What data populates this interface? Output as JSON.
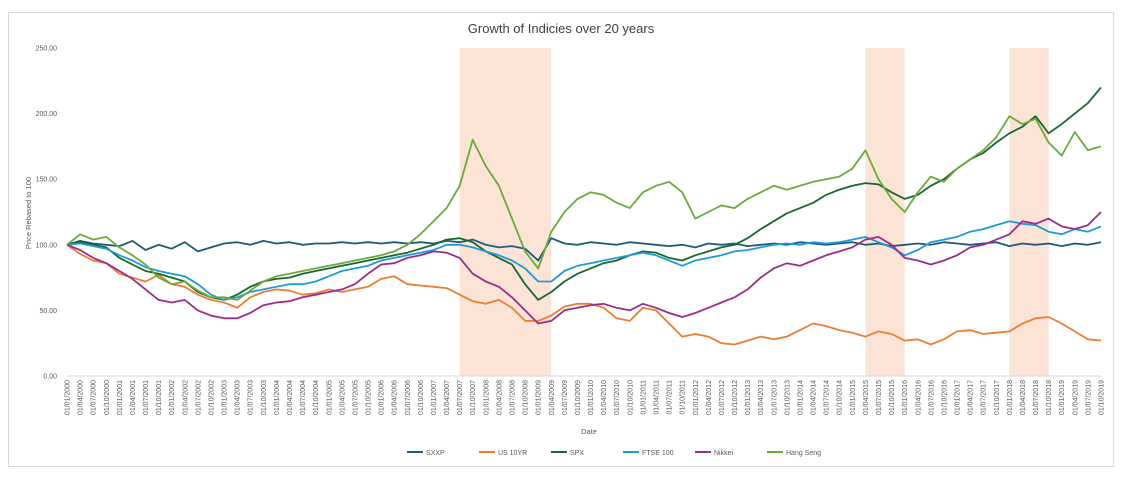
{
  "chart_data": {
    "type": "line",
    "title": "Growth of Indicies over 20 years",
    "xlabel": "Date",
    "ylabel": "Price Rebased to 100",
    "ylim": [
      0,
      250
    ],
    "y_ticks": [
      "0.00",
      "50.00",
      "100.00",
      "150.00",
      "200.00",
      "250.00"
    ],
    "grid": false,
    "legend_position": "bottom",
    "x": [
      "01/01/2000",
      "01/04/2000",
      "01/07/2000",
      "01/10/2000",
      "01/01/2001",
      "01/04/2001",
      "01/07/2001",
      "01/10/2001",
      "01/01/2002",
      "01/04/2002",
      "01/07/2002",
      "01/10/2002",
      "01/01/2003",
      "01/04/2003",
      "01/07/2003",
      "01/10/2003",
      "01/01/2004",
      "01/04/2004",
      "01/07/2004",
      "01/10/2004",
      "01/01/2005",
      "01/04/2005",
      "01/07/2005",
      "01/10/2005",
      "01/01/2006",
      "01/04/2006",
      "01/07/2006",
      "01/10/2006",
      "01/01/2007",
      "01/04/2007",
      "01/07/2007",
      "01/10/2007",
      "01/01/2008",
      "01/04/2008",
      "01/07/2008",
      "01/10/2008",
      "01/01/2009",
      "01/04/2009",
      "01/07/2009",
      "01/10/2009",
      "01/01/2010",
      "01/04/2010",
      "01/07/2010",
      "01/10/2010",
      "01/01/2011",
      "01/04/2011",
      "01/07/2011",
      "01/10/2011",
      "01/01/2012",
      "01/04/2012",
      "01/07/2012",
      "01/10/2012",
      "01/01/2013",
      "01/04/2013",
      "01/07/2013",
      "01/10/2013",
      "01/01/2014",
      "01/04/2014",
      "01/07/2014",
      "01/10/2014",
      "01/01/2015",
      "01/04/2015",
      "01/07/2015",
      "01/10/2015",
      "01/01/2016",
      "01/04/2016",
      "01/07/2016",
      "01/10/2016",
      "01/01/2017",
      "01/04/2017",
      "01/07/2017",
      "01/10/2017",
      "01/01/2018",
      "01/04/2018",
      "01/07/2018",
      "01/10/2018",
      "01/01/2019",
      "01/04/2019",
      "01/07/2019",
      "01/10/2019"
    ],
    "shaded_ranges": [
      [
        "01/07/2007",
        "01/04/2009"
      ],
      [
        "01/04/2015",
        "01/01/2016"
      ],
      [
        "01/01/2018",
        "01/10/2018"
      ]
    ],
    "series": [
      {
        "name": "SXXP",
        "color": "#1f5a7a",
        "values": [
          100,
          103,
          101,
          100,
          99,
          103,
          96,
          100,
          97,
          102,
          95,
          98,
          101,
          102,
          100,
          103,
          101,
          102,
          100,
          101,
          101,
          102,
          101,
          102,
          101,
          102,
          101,
          102,
          101,
          103,
          102,
          104,
          100,
          98,
          99,
          97,
          88,
          105,
          101,
          100,
          102,
          101,
          100,
          102,
          101,
          100,
          99,
          100,
          98,
          101,
          100,
          101,
          99,
          100,
          101,
          100,
          102,
          101,
          100,
          101,
          102,
          100,
          101,
          99,
          100,
          101,
          100,
          102,
          101,
          100,
          101,
          102,
          99,
          101,
          100,
          101,
          99,
          101,
          100,
          102
        ]
      },
      {
        "name": "US 10YR",
        "color": "#ed7d31",
        "values": [
          100,
          93,
          88,
          86,
          78,
          75,
          72,
          77,
          70,
          68,
          62,
          58,
          56,
          52,
          60,
          64,
          66,
          65,
          62,
          63,
          66,
          64,
          66,
          68,
          74,
          76,
          70,
          69,
          68,
          67,
          62,
          57,
          55,
          58,
          52,
          42,
          42,
          46,
          53,
          55,
          55,
          52,
          44,
          42,
          52,
          50,
          40,
          30,
          32,
          30,
          25,
          24,
          27,
          30,
          28,
          30,
          35,
          40,
          38,
          35,
          33,
          30,
          34,
          32,
          27,
          28,
          24,
          28,
          34,
          35,
          32,
          33,
          34,
          40,
          44,
          45,
          40,
          34,
          28,
          27
        ]
      },
      {
        "name": "SPX",
        "color": "#1a6630",
        "values": [
          100,
          102,
          100,
          98,
          90,
          85,
          80,
          78,
          75,
          72,
          64,
          60,
          58,
          62,
          68,
          72,
          74,
          75,
          78,
          80,
          82,
          84,
          86,
          88,
          90,
          92,
          94,
          97,
          100,
          104,
          105,
          102,
          95,
          90,
          85,
          70,
          58,
          64,
          72,
          78,
          82,
          86,
          88,
          92,
          95,
          94,
          90,
          88,
          92,
          95,
          98,
          100,
          105,
          112,
          118,
          124,
          128,
          132,
          138,
          142,
          145,
          147,
          146,
          140,
          135,
          138,
          145,
          150,
          158,
          165,
          170,
          178,
          185,
          190,
          198,
          185,
          192,
          200,
          208,
          220
        ]
      },
      {
        "name": "FTSE 100",
        "color": "#1e9bd7",
        "values": [
          100,
          101,
          99,
          97,
          92,
          88,
          83,
          80,
          78,
          76,
          70,
          62,
          58,
          60,
          64,
          66,
          68,
          70,
          70,
          72,
          76,
          80,
          82,
          84,
          88,
          90,
          92,
          94,
          96,
          100,
          100,
          98,
          95,
          92,
          88,
          82,
          72,
          72,
          80,
          84,
          86,
          88,
          90,
          92,
          94,
          92,
          88,
          84,
          88,
          90,
          92,
          95,
          96,
          98,
          100,
          101,
          100,
          102,
          101,
          102,
          104,
          106,
          102,
          98,
          92,
          96,
          102,
          104,
          106,
          110,
          112,
          115,
          118,
          116,
          115,
          110,
          108,
          112,
          110,
          114
        ]
      },
      {
        "name": "Nikkei",
        "color": "#9b2d8a",
        "values": [
          100,
          96,
          90,
          86,
          80,
          74,
          66,
          58,
          56,
          58,
          50,
          46,
          44,
          44,
          48,
          54,
          56,
          57,
          60,
          62,
          64,
          66,
          70,
          78,
          85,
          86,
          90,
          92,
          95,
          94,
          90,
          78,
          72,
          68,
          60,
          50,
          40,
          42,
          50,
          52,
          54,
          55,
          52,
          50,
          55,
          52,
          48,
          45,
          48,
          52,
          56,
          60,
          66,
          75,
          82,
          86,
          84,
          88,
          92,
          95,
          98,
          104,
          106,
          100,
          90,
          88,
          85,
          88,
          92,
          98,
          100,
          104,
          108,
          118,
          116,
          120,
          114,
          112,
          115,
          125
        ]
      },
      {
        "name": "Hang Seng",
        "color": "#6aaa3a",
        "values": [
          100,
          108,
          104,
          106,
          98,
          92,
          85,
          75,
          70,
          72,
          65,
          60,
          60,
          58,
          65,
          72,
          76,
          78,
          80,
          82,
          84,
          86,
          88,
          90,
          92,
          95,
          100,
          108,
          118,
          128,
          145,
          180,
          160,
          145,
          120,
          95,
          82,
          110,
          125,
          135,
          140,
          138,
          132,
          128,
          140,
          145,
          148,
          140,
          120,
          125,
          130,
          128,
          135,
          140,
          145,
          142,
          145,
          148,
          150,
          152,
          158,
          172,
          150,
          135,
          125,
          140,
          152,
          148,
          158,
          165,
          172,
          182,
          198,
          192,
          196,
          178,
          168,
          186,
          172,
          175
        ]
      }
    ]
  }
}
